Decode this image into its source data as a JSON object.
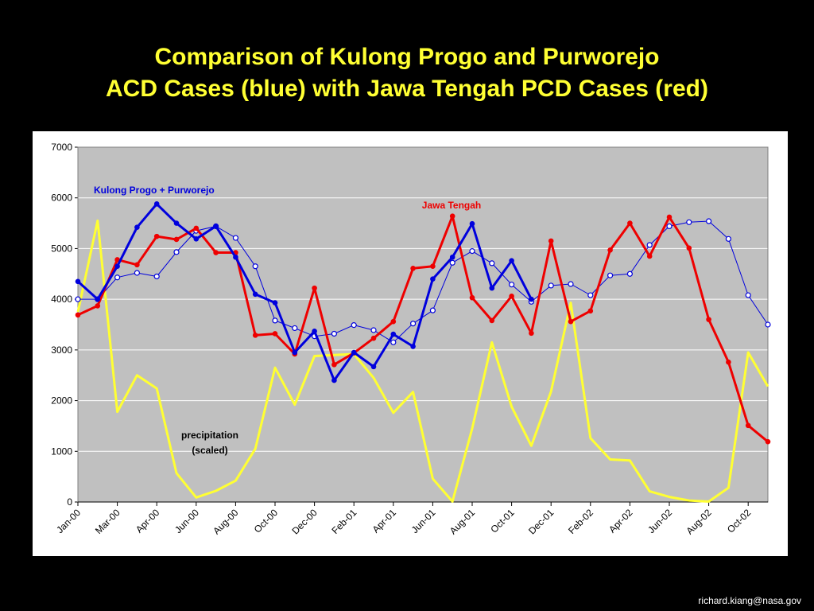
{
  "slide": {
    "title_line1": "Comparison of Kulong Progo and Purworejo",
    "title_line2": "ACD Cases (blue) with Jawa Tengah PCD Cases (red)",
    "footer": "richard.kiang@nasa.gov"
  },
  "colors": {
    "background": "#000000",
    "title": "#ffff33",
    "panel": "#ffffff",
    "plot_area": "#c0c0c0",
    "gridline": "#ffffff",
    "blue": "#0000dd",
    "red": "#ee0000",
    "yellow": "#ffff33"
  },
  "chart_data": {
    "type": "line",
    "title": "",
    "xlabel": "",
    "ylabel": "",
    "ylim": [
      0,
      7000
    ],
    "yticks": [
      0,
      1000,
      2000,
      3000,
      4000,
      5000,
      6000,
      7000
    ],
    "grid": true,
    "x": [
      "Jan-00",
      "Feb-00",
      "Mar-00",
      "Apr-00",
      "May-00",
      "Jun-00",
      "Jul-00",
      "Aug-00",
      "Sep-00",
      "Oct-00",
      "Nov-00",
      "Dec-00",
      "Jan-01",
      "Feb-01",
      "Mar-01",
      "Apr-01",
      "May-01",
      "Jun-01",
      "Jul-01",
      "Aug-01",
      "Sep-01",
      "Oct-01",
      "Nov-01",
      "Dec-01",
      "Jan-02",
      "Feb-02",
      "Mar-02",
      "Apr-02",
      "May-02",
      "Jun-02",
      "Jul-02",
      "Aug-02",
      "Sep-02",
      "Oct-02",
      "Nov-02",
      "Dec-02"
    ],
    "x_tick_labels": [
      {
        "label": "Jan-00",
        "at": 0
      },
      {
        "label": "Mar-00",
        "at": 2
      },
      {
        "label": "Apr-00",
        "at": 4
      },
      {
        "label": "Jun-00",
        "at": 6
      },
      {
        "label": "Aug-00",
        "at": 8
      },
      {
        "label": "Oct-00",
        "at": 10
      },
      {
        "label": "Dec-00",
        "at": 12
      },
      {
        "label": "Feb-01",
        "at": 14
      },
      {
        "label": "Apr-01",
        "at": 16
      },
      {
        "label": "Jun-01",
        "at": 18
      },
      {
        "label": "Aug-01",
        "at": 20
      },
      {
        "label": "Oct-01",
        "at": 22
      },
      {
        "label": "Dec-01",
        "at": 24
      },
      {
        "label": "Feb-02",
        "at": 26
      },
      {
        "label": "Apr-02",
        "at": 28
      },
      {
        "label": "Jun-02",
        "at": 30
      },
      {
        "label": "Aug-02",
        "at": 32
      },
      {
        "label": "Oct-02",
        "at": 34
      }
    ],
    "series": [
      {
        "name": "Kulong Progo + Purworejo",
        "color": "#0000dd",
        "style": "thick-line-filled-markers",
        "values": [
          4350,
          4000,
          4650,
          5420,
          5880,
          5500,
          5190,
          5440,
          4830,
          4100,
          3930,
          2950,
          3370,
          2400,
          2950,
          2670,
          3310,
          3070,
          4400,
          4830,
          5490,
          4220,
          4760,
          4000,
          null,
          null,
          null,
          null,
          null,
          null,
          null,
          null,
          null,
          null,
          null,
          null
        ]
      },
      {
        "name": "",
        "color": "#0000dd",
        "style": "thin-line-open-markers",
        "values": [
          4000,
          4000,
          4430,
          4520,
          4450,
          4930,
          5350,
          5440,
          5210,
          4650,
          3580,
          3430,
          3270,
          3320,
          3490,
          3390,
          3150,
          3520,
          3780,
          4720,
          4950,
          4710,
          4290,
          3950,
          4270,
          4300,
          4080,
          4470,
          4500,
          5070,
          5440,
          5520,
          5540,
          5190,
          4080,
          3500
        ]
      },
      {
        "name": "Jawa Tengah",
        "color": "#ee0000",
        "style": "thick-line-filled-markers",
        "values": [
          3690,
          3870,
          4780,
          4680,
          5240,
          5180,
          5400,
          4920,
          4920,
          3290,
          3320,
          2920,
          4220,
          2710,
          2940,
          3230,
          3560,
          4610,
          4650,
          5640,
          4030,
          3580,
          4060,
          3330,
          5150,
          3560,
          3770,
          4970,
          5500,
          4850,
          5620,
          5010,
          3600,
          2760,
          1510,
          1190
        ]
      },
      {
        "name": "precipitation (scaled)",
        "color": "#ffff33",
        "style": "line",
        "values": [
          3750,
          5550,
          1780,
          2500,
          2240,
          570,
          90,
          220,
          420,
          1050,
          2650,
          1920,
          2880,
          2900,
          2920,
          2450,
          1760,
          2170,
          460,
          10,
          1450,
          3150,
          1880,
          1110,
          2180,
          3930,
          1260,
          840,
          820,
          210,
          100,
          30,
          10,
          280,
          2950,
          2280
        ]
      }
    ],
    "annotations": [
      {
        "text": "Kulong Progo + Purworejo",
        "color": "#0000dd"
      },
      {
        "text": "Jawa Tengah",
        "color": "#ee0000"
      },
      {
        "text": "precipitation",
        "color": "#000000"
      },
      {
        "text": "(scaled)",
        "color": "#000000"
      }
    ]
  }
}
